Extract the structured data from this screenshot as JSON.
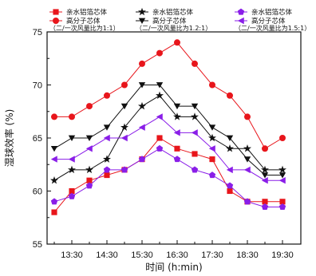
{
  "chart_data": {
    "type": "line",
    "xlabel": "时间 (h:min)",
    "ylabel": "湿球效率 (%)",
    "x_tick_labels": [
      "13:30",
      "14:30",
      "15:30",
      "16:30",
      "17:30",
      "18:30",
      "19:30"
    ],
    "x": [
      "13:00",
      "13:15",
      "13:30",
      "13:45",
      "14:00",
      "14:15",
      "14:30",
      "14:45",
      "15:00",
      "15:15",
      "15:30",
      "15:45",
      "16:00",
      "16:15",
      "16:30",
      "16:45",
      "17:00",
      "17:15",
      "17:30",
      "17:45",
      "18:00",
      "18:15",
      "18:30",
      "18:45",
      "19:00",
      "19:15",
      "19:30",
      "19:45"
    ],
    "ylim": [
      55,
      75
    ],
    "yticks": [
      55,
      60,
      65,
      70,
      75
    ],
    "legend_groups": [
      {
        "label_a": "亲水铝箔芯体",
        "label_b": "高分子芯体",
        "ratio": "（二/一次风量比为1:1）"
      },
      {
        "label_a": "亲水铝箔芯体",
        "label_b": "高分子芯体",
        "ratio": "（二/一次风量比为1.2:1）"
      },
      {
        "label_a": "亲水铝箔芯体",
        "label_b": "高分子芯体",
        "ratio": "（二/一次风量比为1.5:1）"
      }
    ],
    "series": [
      {
        "group": 0,
        "marker": "square",
        "color": "#e8151b",
        "x": [
          "13:00",
          "13:30",
          "14:00",
          "14:30",
          "15:00",
          "15:30",
          "16:00",
          "16:30",
          "17:00",
          "17:30",
          "18:00",
          "18:30",
          "19:00",
          "19:30"
        ],
        "values": [
          58,
          60,
          61,
          61.5,
          62,
          63,
          65,
          64,
          63.5,
          63,
          60,
          59,
          59,
          59
        ]
      },
      {
        "group": 0,
        "marker": "circle",
        "color": "#e8151b",
        "x": [
          "13:00",
          "13:30",
          "14:00",
          "14:30",
          "15:00",
          "15:30",
          "16:00",
          "16:30",
          "17:00",
          "17:30",
          "18:00",
          "18:30",
          "19:00",
          "19:30"
        ],
        "values": [
          67,
          67,
          68,
          69,
          70,
          72,
          73,
          74,
          72,
          70,
          69,
          67,
          64,
          65
        ]
      },
      {
        "group": 1,
        "marker": "star",
        "color": "#111111",
        "x": [
          "13:00",
          "13:30",
          "14:00",
          "14:30",
          "15:00",
          "15:30",
          "16:00",
          "16:30",
          "17:00",
          "17:30",
          "18:00",
          "18:30",
          "19:00",
          "19:30"
        ],
        "values": [
          61,
          62,
          62,
          63,
          66,
          68,
          69,
          67,
          67,
          65,
          64,
          64,
          62,
          62
        ]
      },
      {
        "group": 1,
        "marker": "triangle-down",
        "color": "#111111",
        "x": [
          "13:00",
          "13:30",
          "14:00",
          "14:30",
          "15:00",
          "15:30",
          "16:00",
          "16:30",
          "17:00",
          "17:30",
          "18:00",
          "18:30",
          "19:00",
          "19:30"
        ],
        "values": [
          64,
          65,
          65,
          66,
          68,
          70,
          70,
          68,
          68,
          66,
          65,
          63,
          61.5,
          61.5
        ]
      },
      {
        "group": 2,
        "marker": "pentagon",
        "color": "#8a1ee8",
        "x": [
          "13:00",
          "13:30",
          "14:00",
          "14:30",
          "15:00",
          "15:30",
          "16:00",
          "16:30",
          "17:00",
          "17:30",
          "18:00",
          "18:30",
          "19:00",
          "19:30"
        ],
        "values": [
          59,
          59.5,
          60.5,
          62,
          62,
          63,
          64,
          63,
          62,
          61.5,
          60.5,
          59,
          58.5,
          58.5
        ]
      },
      {
        "group": 2,
        "marker": "triangle-left",
        "color": "#8a1ee8",
        "x": [
          "13:00",
          "13:30",
          "14:00",
          "14:30",
          "15:00",
          "15:30",
          "16:00",
          "16:30",
          "17:00",
          "17:30",
          "18:00",
          "18:30",
          "19:00",
          "19:30"
        ],
        "values": [
          63,
          63,
          64,
          65,
          65,
          66,
          67,
          65.5,
          65.5,
          64,
          62,
          62,
          61,
          61
        ]
      }
    ]
  }
}
